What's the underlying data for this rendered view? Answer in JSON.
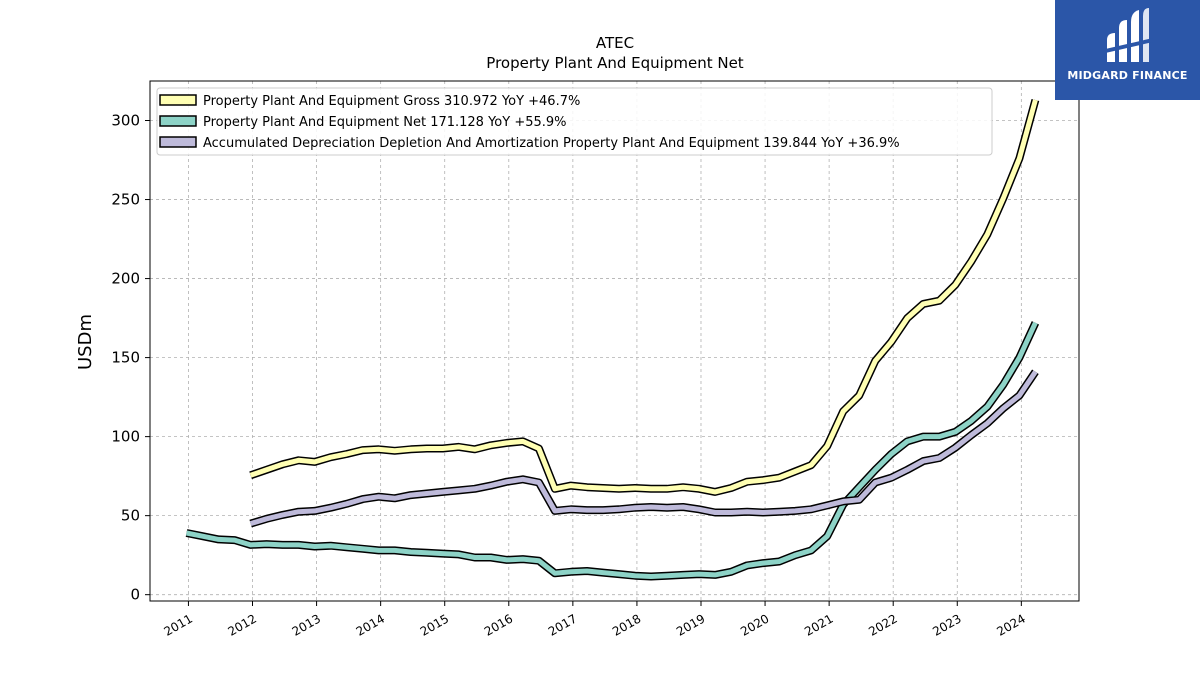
{
  "branding": {
    "logo_text": "MIDGARD FINANCE",
    "logo_bg": "#2b56a8"
  },
  "chart_data": {
    "type": "line",
    "title": "ATEC",
    "subtitle": "Property Plant And Equipment Net",
    "xlabel": "",
    "ylabel": "USDm",
    "xlim": [
      2010.4,
      2024.9
    ],
    "ylim": [
      -4,
      325
    ],
    "yticks": [
      0,
      50,
      100,
      150,
      200,
      250,
      300
    ],
    "xticks": [
      "2011",
      "2012",
      "2013",
      "2014",
      "2015",
      "2016",
      "2017",
      "2018",
      "2019",
      "2020",
      "2021",
      "2022",
      "2023",
      "2024"
    ],
    "grid": true,
    "legend_position": "top-left",
    "series": [
      {
        "name": "Property Plant And Equipment Gross  310.972 YoY +46.7%",
        "color": "#ffffb3",
        "x": [
          2011.97,
          2012.22,
          2012.47,
          2012.72,
          2012.97,
          2013.22,
          2013.47,
          2013.72,
          2013.97,
          2014.22,
          2014.47,
          2014.72,
          2014.97,
          2015.22,
          2015.47,
          2015.72,
          2015.97,
          2016.22,
          2016.47,
          2016.72,
          2016.97,
          2017.22,
          2017.47,
          2017.72,
          2017.97,
          2018.22,
          2018.47,
          2018.72,
          2018.97,
          2019.22,
          2019.47,
          2019.72,
          2019.97,
          2020.22,
          2020.47,
          2020.72,
          2020.97,
          2021.22,
          2021.47,
          2021.72,
          2021.97,
          2022.22,
          2022.47,
          2022.72,
          2022.97,
          2023.22,
          2023.47,
          2023.72,
          2023.97,
          2024.22
        ],
        "values": [
          75.5,
          79,
          82.5,
          85,
          84,
          87,
          89,
          91.5,
          92,
          91,
          92,
          92.5,
          92.5,
          93.5,
          92,
          94.5,
          96,
          97,
          92.5,
          67,
          69,
          68,
          67.5,
          67,
          67.5,
          67,
          67,
          68,
          67,
          65,
          67.5,
          71.5,
          72.5,
          74,
          78,
          82,
          94,
          116,
          126,
          148,
          160,
          175,
          184,
          186,
          196,
          211,
          228,
          251,
          276,
          313
        ]
      },
      {
        "name": "Property Plant And Equipment Net  171.128 YoY +55.9%",
        "color": "#8dd3c7",
        "x": [
          2010.97,
          2011.22,
          2011.47,
          2011.72,
          2011.97,
          2012.22,
          2012.47,
          2012.72,
          2012.97,
          2013.22,
          2013.47,
          2013.72,
          2013.97,
          2014.22,
          2014.47,
          2014.72,
          2014.97,
          2015.22,
          2015.47,
          2015.72,
          2015.97,
          2016.22,
          2016.47,
          2016.72,
          2016.97,
          2017.22,
          2017.47,
          2017.72,
          2017.97,
          2018.22,
          2018.47,
          2018.72,
          2018.97,
          2019.22,
          2019.47,
          2019.72,
          2019.97,
          2020.22,
          2020.47,
          2020.72,
          2020.97,
          2021.22,
          2021.47,
          2021.72,
          2021.97,
          2022.22,
          2022.47,
          2022.72,
          2022.97,
          2023.22,
          2023.47,
          2023.72,
          2023.97,
          2024.22
        ],
        "values": [
          39,
          37,
          35,
          34.5,
          31.5,
          32,
          31.5,
          31.5,
          30.5,
          31,
          30,
          29,
          28,
          28,
          27,
          26.5,
          26,
          25.5,
          23.5,
          23.5,
          22,
          22.5,
          21.5,
          13.5,
          14.5,
          15,
          14,
          13,
          12,
          11.5,
          12,
          12.5,
          13,
          12.5,
          14.5,
          18.5,
          20,
          21,
          25,
          28,
          37,
          57,
          68,
          79,
          89,
          97,
          100,
          100,
          103,
          110,
          119,
          133,
          150,
          172
        ]
      },
      {
        "name": "Accumulated Depreciation Depletion And Amortization Property Plant And Equipment  139.844 YoY +36.9%",
        "color": "#bebada",
        "x": [
          2011.97,
          2012.22,
          2012.47,
          2012.72,
          2012.97,
          2013.22,
          2013.47,
          2013.72,
          2013.97,
          2014.22,
          2014.47,
          2014.72,
          2014.97,
          2015.22,
          2015.47,
          2015.72,
          2015.97,
          2016.22,
          2016.47,
          2016.72,
          2016.97,
          2017.22,
          2017.47,
          2017.72,
          2017.97,
          2018.22,
          2018.47,
          2018.72,
          2018.97,
          2019.22,
          2019.47,
          2019.72,
          2019.97,
          2020.22,
          2020.47,
          2020.72,
          2020.97,
          2021.22,
          2021.47,
          2021.72,
          2021.97,
          2022.22,
          2022.47,
          2022.72,
          2022.97,
          2023.22,
          2023.47,
          2023.72,
          2023.97,
          2024.22
        ],
        "values": [
          45,
          48,
          50.5,
          52.5,
          53,
          55,
          57.5,
          60.5,
          62,
          61,
          63,
          64,
          65,
          66,
          67,
          69,
          71.5,
          73,
          71,
          53,
          54,
          53.5,
          53.5,
          54,
          55,
          55.5,
          55,
          55.5,
          54,
          52,
          52,
          52.5,
          52,
          52.5,
          53,
          54,
          56.5,
          59,
          60,
          71,
          74,
          79,
          84.5,
          86.5,
          93,
          101,
          108.5,
          118,
          126,
          141
        ]
      }
    ]
  }
}
